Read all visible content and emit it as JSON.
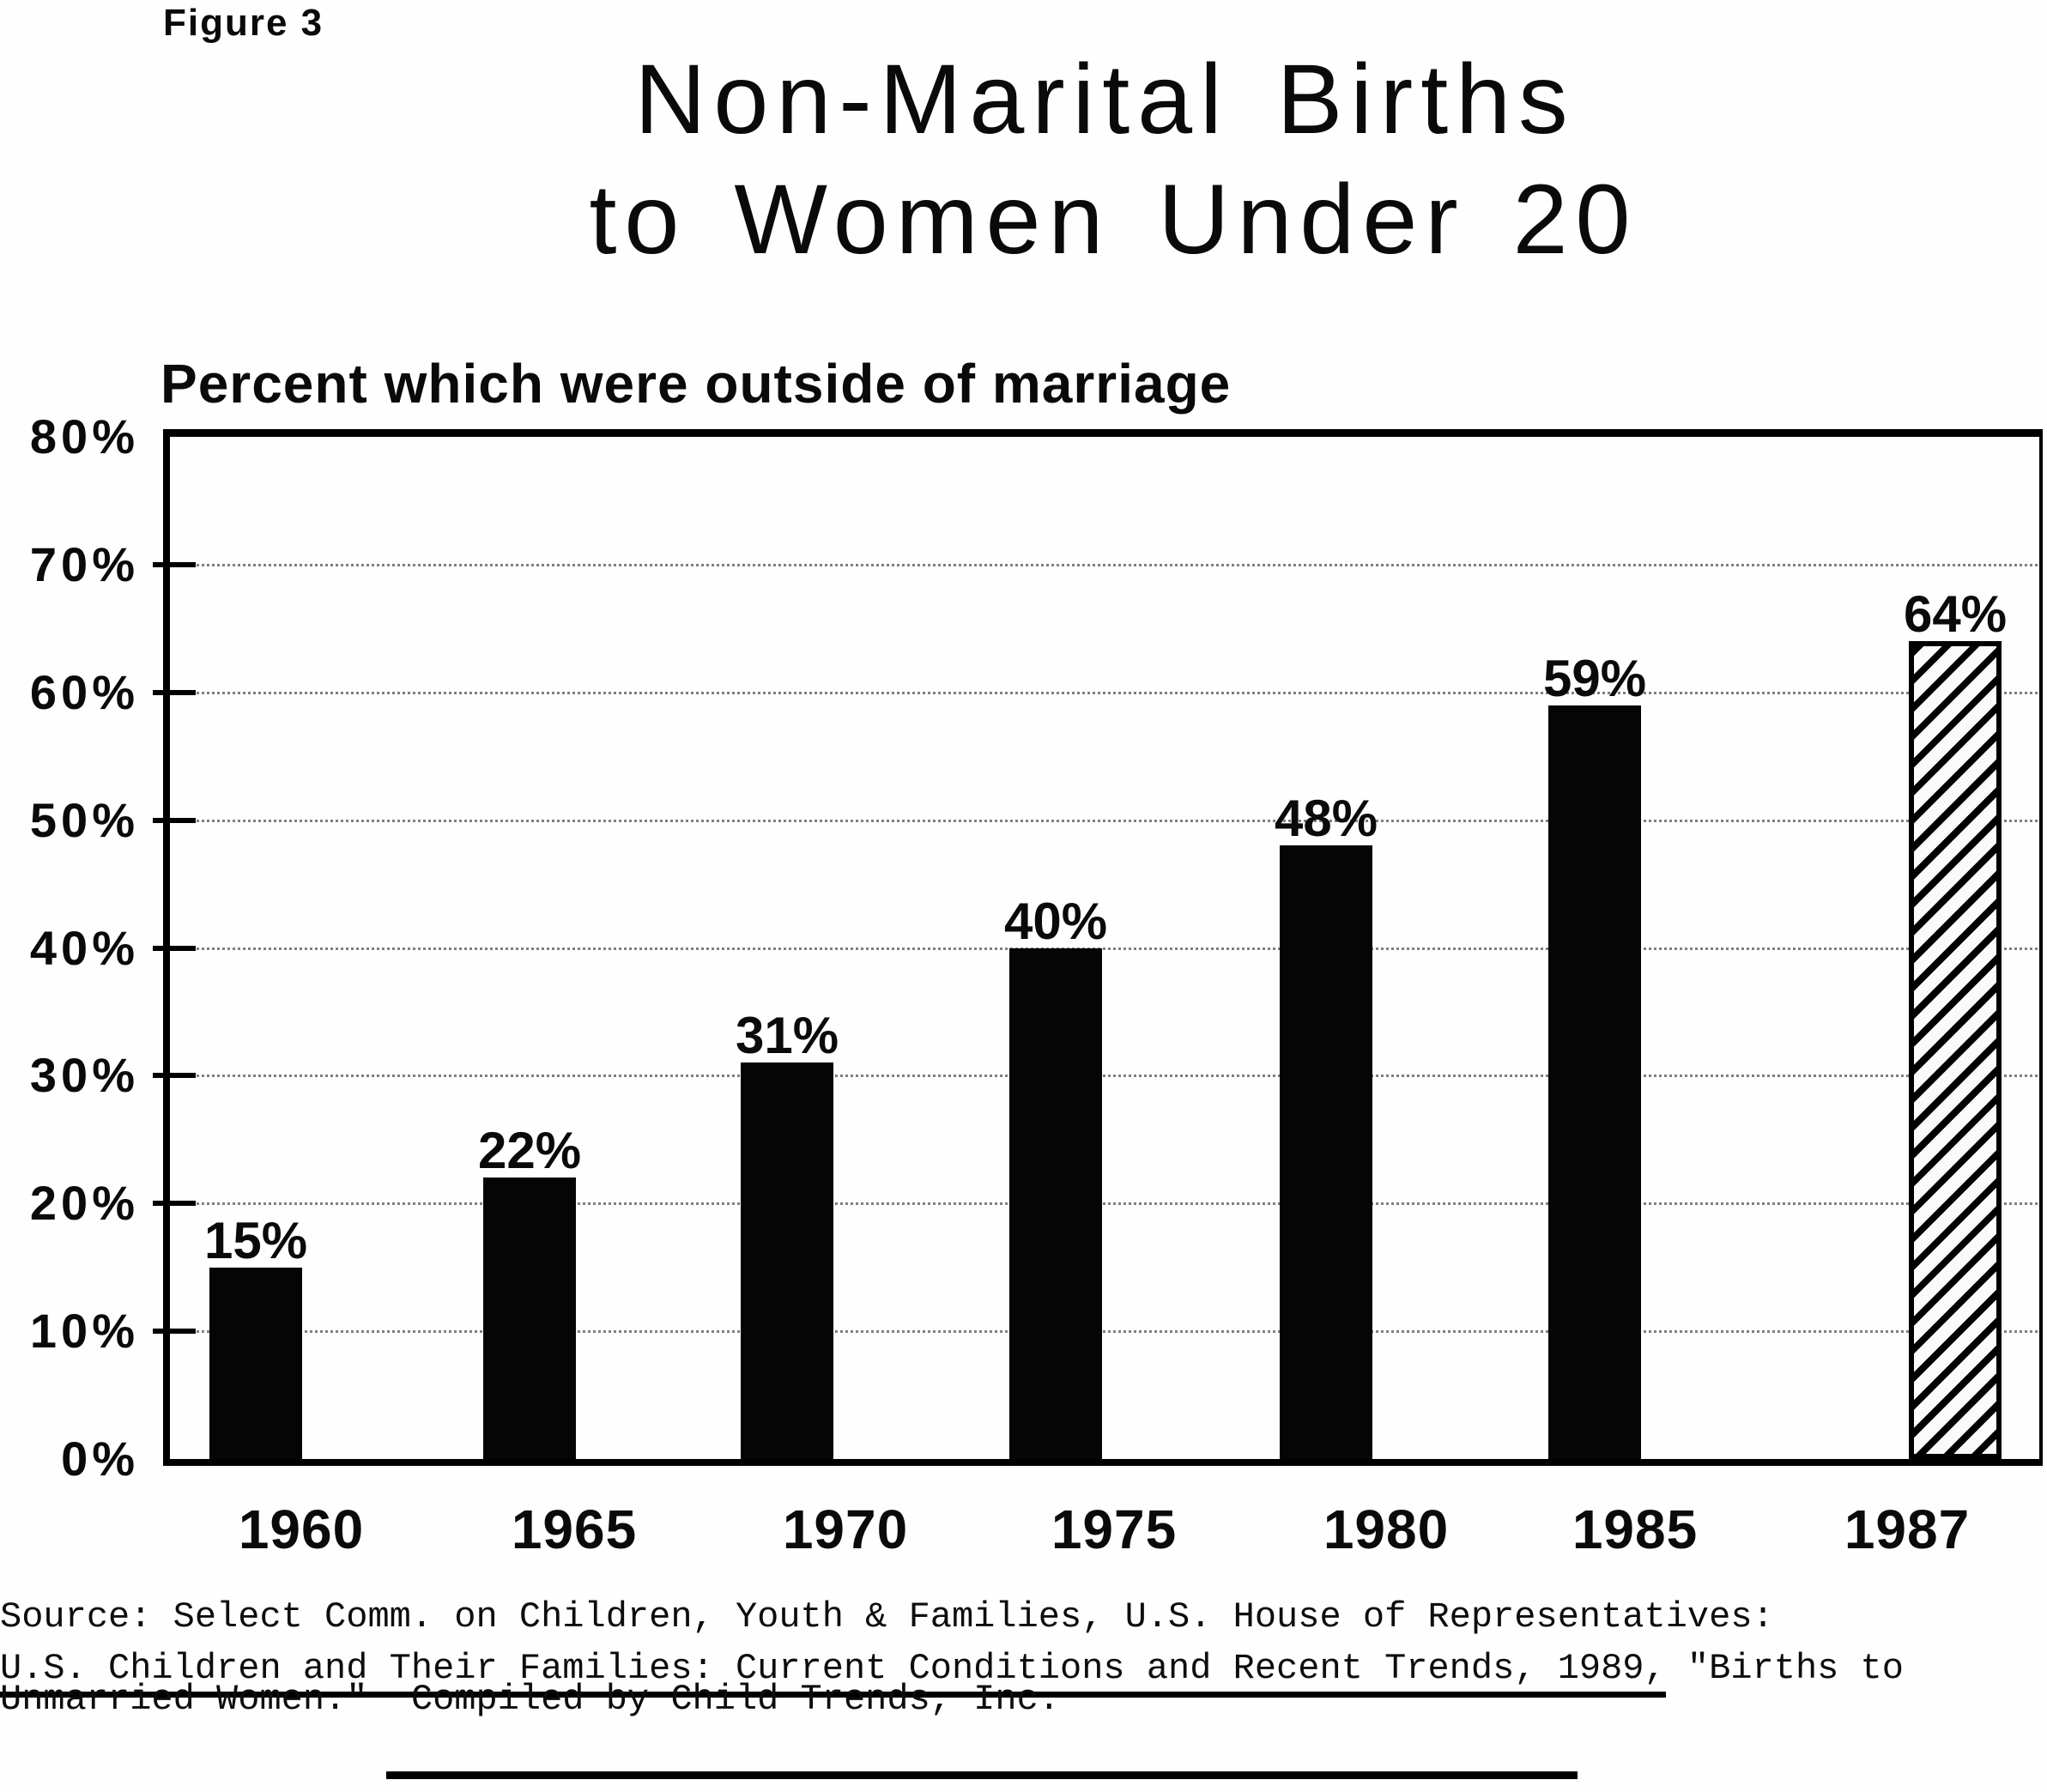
{
  "header": {
    "figure_label": "Figure 3",
    "title_line1": "Non-Marital Births",
    "title_line2": "to Women Under 20",
    "subtitle": "Percent which were outside of marriage"
  },
  "chart_data": {
    "type": "bar",
    "title": "Non-Marital Births to Women Under 20",
    "subtitle": "Percent which were outside of marriage",
    "categories": [
      "1960",
      "1965",
      "1970",
      "1975",
      "1980",
      "1985",
      "1987"
    ],
    "values": [
      15,
      22,
      31,
      40,
      48,
      59,
      64
    ],
    "labels": [
      "15%",
      "22%",
      "31%",
      "40%",
      "48%",
      "59%",
      "64%"
    ],
    "patterns": [
      "solid",
      "solid",
      "solid",
      "solid",
      "solid",
      "solid",
      "hatched"
    ],
    "xlabel": "",
    "ylabel": "Percent which were outside of marriage",
    "ylim": [
      0,
      80
    ],
    "ytick_interval": 10,
    "yticks": [
      "80%",
      "70%",
      "60%",
      "50%",
      "40%",
      "30%",
      "20%",
      "10%",
      "0%"
    ],
    "grid": "horizontal-dotted",
    "legend": "none",
    "bar_color": "#000000",
    "hatch_direction": "diagonal-bottom-left-to-top-right"
  },
  "source": {
    "line1": "Source: Select Comm. on Children, Youth & Families, U.S. House of Representatives:",
    "line2_underlined": "U.S. Children and Their Families: Current Conditions and Recent Trends, 1989,",
    "line2_rest": " \"Births to",
    "line3": "Unmarried Women.\"  Compiled by Child Trends, Inc."
  },
  "colors": {
    "ink": "#000000",
    "paper": "#fefefe"
  }
}
